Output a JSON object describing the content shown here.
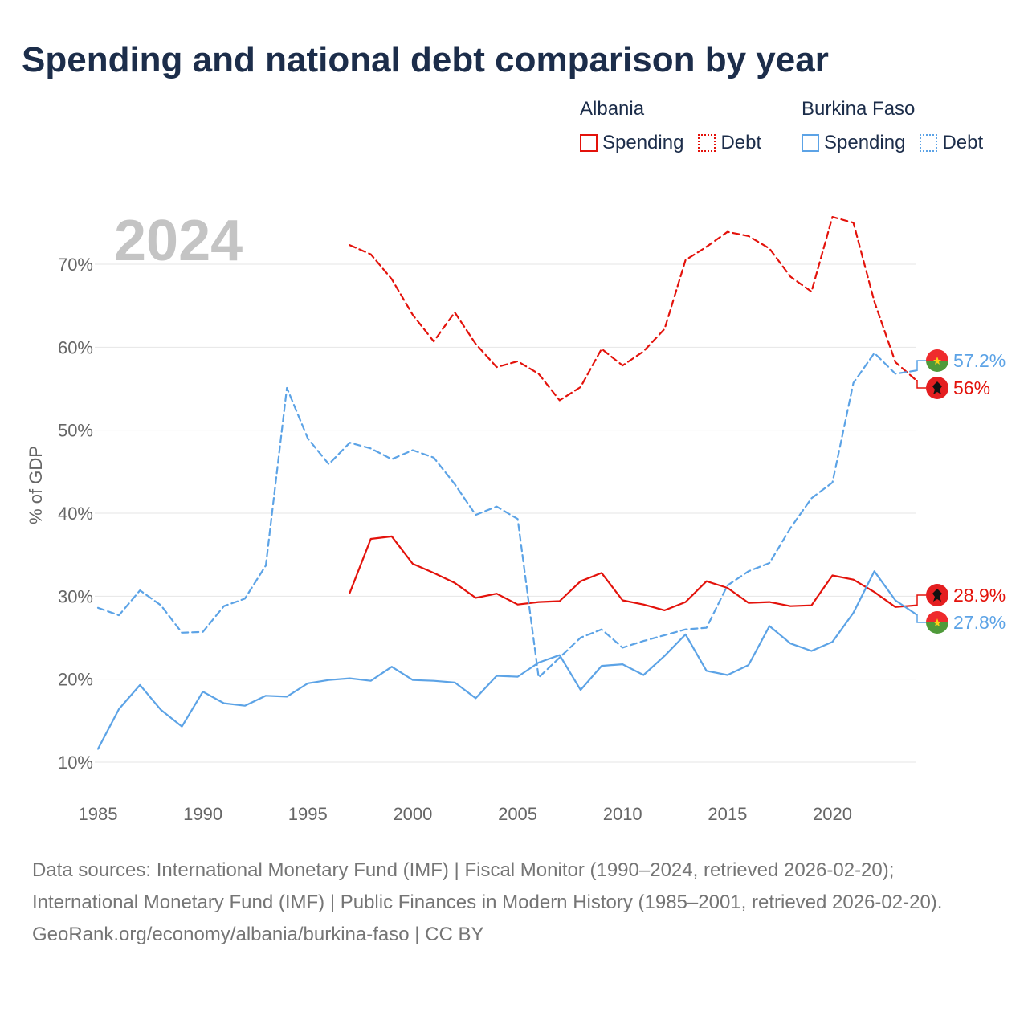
{
  "title": "Spending and national debt comparison by year",
  "legend": {
    "groups": [
      {
        "country": "Albania",
        "color": "#e3120b",
        "items": [
          {
            "label": "Spending",
            "style": "solid"
          },
          {
            "label": "Debt",
            "style": "dotted"
          }
        ]
      },
      {
        "country": "Burkina Faso",
        "color": "#5ca3e6",
        "items": [
          {
            "label": "Spending",
            "style": "solid"
          },
          {
            "label": "Debt",
            "style": "dotted"
          }
        ]
      }
    ]
  },
  "chart_data": {
    "type": "line",
    "year_watermark": "2024",
    "ylabel": "% of GDP",
    "xlim": [
      1985,
      2024
    ],
    "ylim": [
      10,
      75
    ],
    "x_ticks": [
      1985,
      1990,
      1995,
      2000,
      2005,
      2010,
      2015,
      2020
    ],
    "y_ticks": [
      {
        "value": 10,
        "label": "10%"
      },
      {
        "value": 20,
        "label": "20%"
      },
      {
        "value": 30,
        "label": "30%"
      },
      {
        "value": 40,
        "label": "40%"
      },
      {
        "value": 50,
        "label": "50%"
      },
      {
        "value": 60,
        "label": "60%"
      },
      {
        "value": 70,
        "label": "70%"
      }
    ],
    "series": [
      {
        "name": "Albania Debt",
        "country": "Albania",
        "metric": "Debt",
        "color": "#e3120b",
        "dashed": true,
        "x": [
          1997,
          1998,
          1999,
          2000,
          2001,
          2002,
          2003,
          2004,
          2005,
          2006,
          2007,
          2008,
          2009,
          2010,
          2011,
          2012,
          2013,
          2014,
          2015,
          2016,
          2017,
          2018,
          2019,
          2020,
          2021,
          2022,
          2023,
          2024
        ],
        "values": [
          72.3,
          71.2,
          68.2,
          63.9,
          60.7,
          64.2,
          60.4,
          57.6,
          58.3,
          56.8,
          53.6,
          55.2,
          59.8,
          57.8,
          59.5,
          62.2,
          70.5,
          72.1,
          73.9,
          73.4,
          71.9,
          68.5,
          66.7,
          75.7,
          75.0,
          65.5,
          58.2,
          56.0
        ],
        "end_label": "56%"
      },
      {
        "name": "Albania Spending",
        "country": "Albania",
        "metric": "Spending",
        "color": "#e3120b",
        "dashed": false,
        "x": [
          1997,
          1998,
          1999,
          2000,
          2001,
          2002,
          2003,
          2004,
          2005,
          2006,
          2007,
          2008,
          2009,
          2010,
          2011,
          2012,
          2013,
          2014,
          2015,
          2016,
          2017,
          2018,
          2019,
          2020,
          2021,
          2022,
          2023,
          2024
        ],
        "values": [
          30.4,
          36.9,
          37.2,
          33.9,
          32.8,
          31.6,
          29.8,
          30.3,
          29.0,
          29.3,
          29.4,
          31.8,
          32.8,
          29.5,
          29.0,
          28.3,
          29.3,
          31.8,
          31.0,
          29.2,
          29.3,
          28.8,
          28.9,
          32.5,
          32.0,
          30.5,
          28.7,
          28.9
        ],
        "end_label": "28.9%"
      },
      {
        "name": "Burkina Faso Debt",
        "country": "Burkina Faso",
        "metric": "Debt",
        "color": "#5ca3e6",
        "dashed": true,
        "x": [
          1985,
          1986,
          1987,
          1988,
          1989,
          1990,
          1991,
          1992,
          1993,
          1994,
          1995,
          1996,
          1997,
          1998,
          1999,
          2000,
          2001,
          2002,
          2003,
          2004,
          2005,
          2006,
          2007,
          2008,
          2009,
          2010,
          2011,
          2012,
          2013,
          2014,
          2015,
          2016,
          2017,
          2018,
          2019,
          2020,
          2021,
          2022,
          2023,
          2024
        ],
        "values": [
          28.6,
          27.7,
          30.7,
          28.9,
          25.6,
          25.7,
          28.8,
          29.7,
          33.7,
          55.1,
          49.0,
          45.9,
          48.5,
          47.8,
          46.5,
          47.6,
          46.7,
          43.5,
          39.8,
          40.8,
          39.3,
          20.2,
          22.6,
          25.0,
          26.0,
          23.8,
          24.6,
          25.3,
          26.0,
          26.2,
          31.3,
          33.0,
          34.0,
          38.2,
          41.8,
          43.7,
          55.7,
          59.3,
          56.8,
          57.2
        ],
        "end_label": "57.2%"
      },
      {
        "name": "Burkina Faso Spending",
        "country": "Burkina Faso",
        "metric": "Spending",
        "color": "#5ca3e6",
        "dashed": false,
        "x": [
          1985,
          1986,
          1987,
          1988,
          1989,
          1990,
          1991,
          1992,
          1993,
          1994,
          1995,
          1996,
          1997,
          1998,
          1999,
          2000,
          2001,
          2002,
          2003,
          2004,
          2005,
          2006,
          2007,
          2008,
          2009,
          2010,
          2011,
          2012,
          2013,
          2014,
          2015,
          2016,
          2017,
          2018,
          2019,
          2020,
          2021,
          2022,
          2023,
          2024
        ],
        "values": [
          11.6,
          16.4,
          19.3,
          16.3,
          14.3,
          18.5,
          17.1,
          16.8,
          18.0,
          17.9,
          19.5,
          19.9,
          20.1,
          19.8,
          21.5,
          19.9,
          19.8,
          19.6,
          17.7,
          20.4,
          20.3,
          22.0,
          22.9,
          18.7,
          21.6,
          21.8,
          20.5,
          22.8,
          25.4,
          21.0,
          20.5,
          21.7,
          26.4,
          24.3,
          23.4,
          24.5,
          28.0,
          33.0,
          29.5,
          27.8
        ],
        "end_label": "27.8%"
      }
    ]
  },
  "sources": {
    "line1": "Data sources: International Monetary Fund (IMF) | Fiscal Monitor (1990–2024, retrieved 2026-02-20); International Monetary Fund (IMF) | Public Finances in Modern History (1985–2001, retrieved 2026-02-20).",
    "line2": "GeoRank.org/economy/albania/burkina-faso | CC BY"
  }
}
